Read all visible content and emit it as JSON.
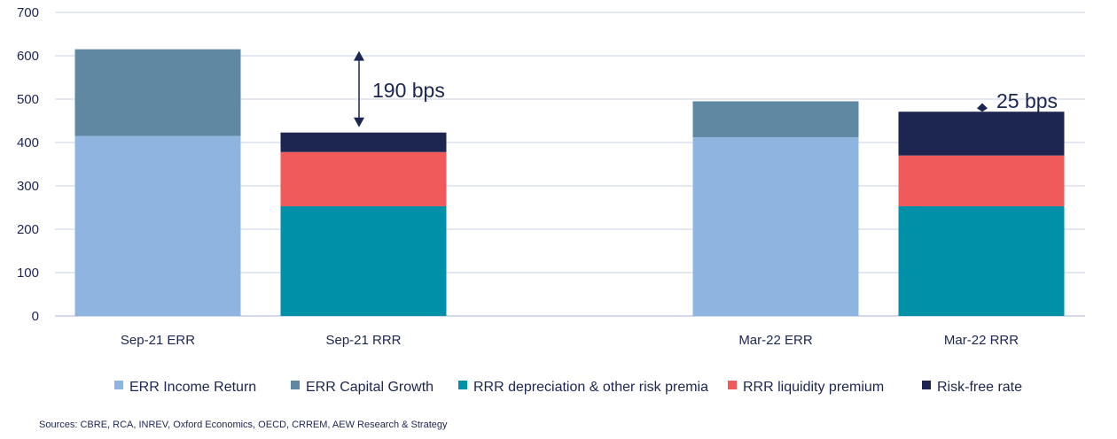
{
  "chart_data": {
    "type": "bar",
    "stacked": true,
    "categories": [
      "Sep-21 ERR",
      "Sep-21 RRR",
      "Mar-22 ERR",
      "Mar-22 RRR"
    ],
    "series": [
      {
        "name": "ERR Income Return",
        "color": "#8eb4e0",
        "values": [
          415,
          0,
          412,
          0
        ]
      },
      {
        "name": "ERR Capital Growth",
        "color": "#5f88a3",
        "values": [
          200,
          0,
          83,
          0
        ]
      },
      {
        "name": "RRR depreciation & other risk premia",
        "color": "#0090a8",
        "values": [
          0,
          253,
          0,
          253
        ]
      },
      {
        "name": "RRR liquidity premium",
        "color": "#f05a5a",
        "values": [
          0,
          125,
          0,
          117
        ]
      },
      {
        "name": "Risk-free rate",
        "color": "#1c2650",
        "values": [
          0,
          45,
          0,
          101
        ]
      }
    ],
    "ylim": [
      0,
      700
    ],
    "yticks": [
      0,
      100,
      200,
      300,
      400,
      500,
      600,
      700
    ],
    "grid": true,
    "legend": "bottom",
    "annotations": [
      {
        "text": "190 bps",
        "between": [
          "Sep-21 ERR",
          "Sep-21 RRR"
        ]
      },
      {
        "text": "25 bps",
        "between": [
          "Mar-22 ERR",
          "Mar-22 RRR"
        ]
      }
    ]
  },
  "source": "Sources: CBRE, RCA, INREV, Oxford Economics, OECD, CRREM, AEW Research & Strategy"
}
